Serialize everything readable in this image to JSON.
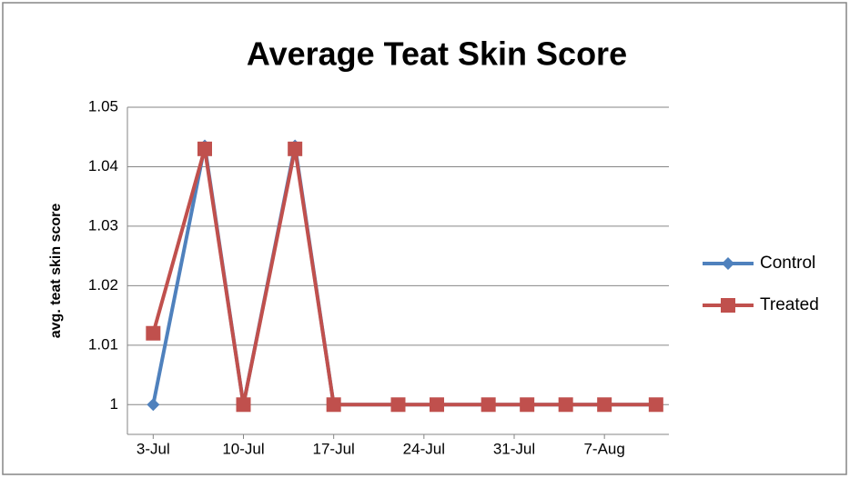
{
  "chart_data": {
    "type": "line",
    "title": "Average Teat Skin Score",
    "y_label": "avg. teat skin score",
    "x": [
      "3-Jul",
      "7-Jul",
      "10-Jul",
      "14-Jul",
      "17-Jul",
      "22-Jul",
      "25-Jul",
      "29-Jul",
      "1-Aug",
      "4-Aug",
      "7-Aug",
      "11-Aug"
    ],
    "series": [
      {
        "name": "Control",
        "color": "#4f81bd",
        "marker": "diamond",
        "values": [
          1,
          1.0435,
          1,
          1.0435,
          1,
          1,
          1,
          1,
          1,
          1,
          1,
          1
        ]
      },
      {
        "name": "Treated",
        "color": "#c0504d",
        "marker": "square",
        "values": [
          1.012,
          1.043,
          1,
          1.043,
          1,
          1,
          1,
          1,
          1,
          1,
          1,
          1
        ]
      }
    ],
    "xlim": [
      "1-Jul",
      "12-Aug"
    ],
    "xticks": [
      "3-Jul",
      "10-Jul",
      "17-Jul",
      "24-Jul",
      "31-Jul",
      "7-Aug"
    ],
    "ylim": [
      0.995,
      1.05
    ],
    "yticks": [
      1,
      1.01,
      1.02,
      1.03,
      1.04,
      1.05
    ],
    "grid": true,
    "legend": "right"
  }
}
